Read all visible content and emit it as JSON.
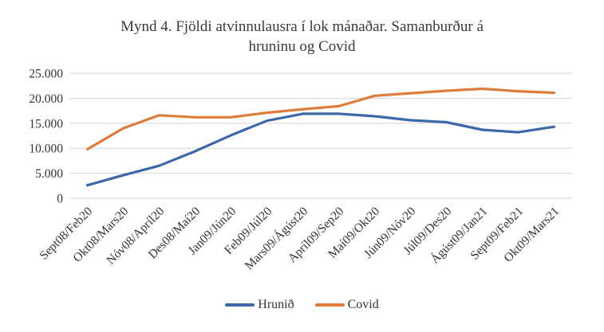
{
  "title": {
    "line1": "Mynd 4. Fjöldi atvinnulausra í lok mánaðar. Samanburður á",
    "line2": "hruninu og Covid"
  },
  "chart_data": {
    "type": "line",
    "title": "Mynd 4. Fjöldi atvinnulausra í lok mánaðar. Samanburður á hruninu og Covid",
    "categories": [
      "Sept08/Feb20",
      "Okt08/Mars20",
      "Nóv08/Apríl20",
      "Des08/Maí20",
      "Jan09/Jún20",
      "Feb09/Júl20",
      "Mars09/Ágúst20",
      "Apríl09/Sep20",
      "Maí09/Okt20",
      "Jún09/Nóv20",
      "Júl09/Des20",
      "Ágúst09/Jan21",
      "Sept09/Feb21",
      "Okt09/Mars21"
    ],
    "series": [
      {
        "name": "Hrunið",
        "color": "#3c68aa",
        "values": [
          2600,
          4600,
          6500,
          9400,
          12600,
          15500,
          16900,
          16900,
          16400,
          15600,
          15200,
          13700,
          13200,
          14300
        ]
      },
      {
        "name": "Covid",
        "color": "#e07c3a",
        "values": [
          9800,
          14000,
          16600,
          16200,
          16200,
          17100,
          17800,
          18400,
          20500,
          21000,
          21500,
          21900,
          21400,
          21100
        ]
      }
    ],
    "ylim": [
      0,
      25000
    ],
    "y_ticks": [
      {
        "value": 0,
        "label": "0"
      },
      {
        "value": 5000,
        "label": "5.000"
      },
      {
        "value": 10000,
        "label": "10.000"
      },
      {
        "value": 15000,
        "label": "15.000"
      },
      {
        "value": 20000,
        "label": "20.000"
      },
      {
        "value": 25000,
        "label": "25.000"
      }
    ],
    "grid": "horizontal",
    "legend_position": "bottom",
    "xlabel": "",
    "ylabel": ""
  },
  "colors": {
    "gridline": "#d6d6d6",
    "axis_text": "#333333",
    "title_text": "#3a3a3a",
    "background": "#ffffff"
  }
}
